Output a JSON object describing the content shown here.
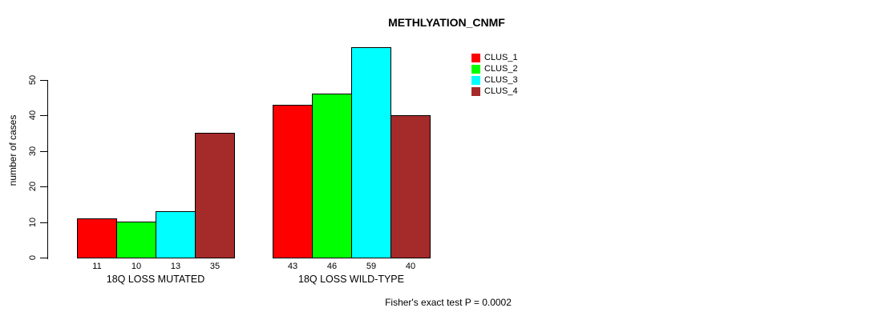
{
  "title": "METHLYATION_CNMF",
  "footer": "Fisher's exact test P = 0.0002",
  "y_axis": {
    "label": "number of cases",
    "ticks": [
      0,
      10,
      20,
      30,
      40,
      50
    ]
  },
  "legend": {
    "position": "top-right",
    "items": [
      {
        "label": "CLUS_1",
        "color": "#FF0000"
      },
      {
        "label": "CLUS_2",
        "color": "#00FF00"
      },
      {
        "label": "CLUS_3",
        "color": "#00FFFF"
      },
      {
        "label": "CLUS_4",
        "color": "#A52A2A"
      }
    ]
  },
  "chart_data": {
    "type": "bar",
    "title": "METHLYATION_CNMF",
    "xlabel": "",
    "ylabel": "number of cases",
    "ylim": [
      0,
      59
    ],
    "y_ticks": [
      0,
      10,
      20,
      30,
      40,
      50
    ],
    "grid": false,
    "legend_position": "top-right",
    "categories": [
      "18Q LOSS MUTATED",
      "18Q LOSS WILD-TYPE"
    ],
    "series": [
      {
        "name": "CLUS_1",
        "color": "#FF0000",
        "values": [
          11,
          43
        ]
      },
      {
        "name": "CLUS_2",
        "color": "#00FF00",
        "values": [
          10,
          46
        ]
      },
      {
        "name": "CLUS_3",
        "color": "#00FFFF",
        "values": [
          13,
          59
        ]
      },
      {
        "name": "CLUS_4",
        "color": "#A52A2A",
        "values": [
          35,
          40
        ]
      }
    ],
    "bar_value_labels": [
      [
        11,
        10,
        13,
        35
      ],
      [
        43,
        46,
        59,
        40
      ]
    ],
    "annotation": "Fisher's exact test P = 0.0002"
  }
}
